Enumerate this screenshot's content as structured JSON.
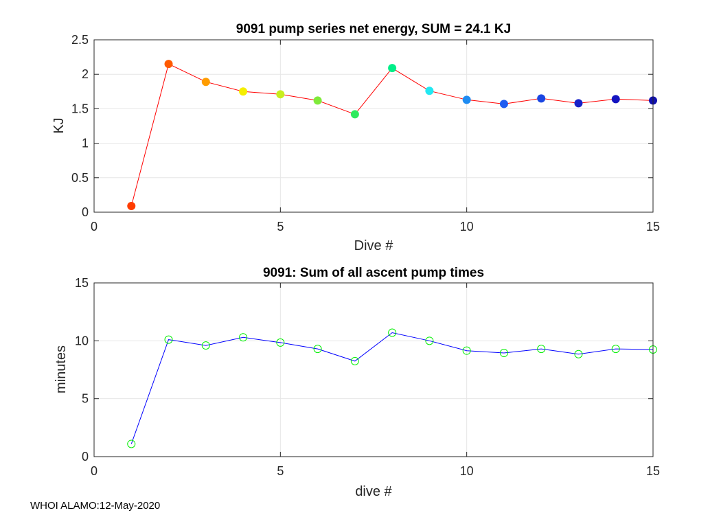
{
  "chart_data": [
    {
      "type": "line",
      "title": "9091 pump series net energy, SUM =  24.1 KJ",
      "xlabel": "Dive #",
      "ylabel": "KJ",
      "xlim": [
        0,
        15
      ],
      "ylim": [
        0,
        2.5
      ],
      "xticks": [
        "0",
        "5",
        "10",
        "15"
      ],
      "yticks": [
        "0",
        "0.5",
        "1",
        "1.5",
        "2",
        "2.5"
      ],
      "grid": true,
      "line_color": "#ff0000",
      "x": [
        1,
        2,
        3,
        4,
        5,
        6,
        7,
        8,
        9,
        10,
        11,
        12,
        13,
        14,
        15
      ],
      "values": [
        0.09,
        2.15,
        1.89,
        1.75,
        1.71,
        1.62,
        1.42,
        2.09,
        1.76,
        1.63,
        1.57,
        1.65,
        1.58,
        1.64,
        1.62
      ],
      "marker_colors": [
        "#ff3c00",
        "#ff5a00",
        "#ff9d00",
        "#f5ee00",
        "#c8ee1e",
        "#7fea3a",
        "#2eea5c",
        "#00ee88",
        "#22e8f2",
        "#1f8cf2",
        "#1f5cf0",
        "#1a46e2",
        "#1620c8",
        "#1414c0",
        "#1010b0"
      ]
    },
    {
      "type": "line",
      "title": "9091: Sum of all ascent pump times",
      "xlabel": "dive #",
      "ylabel": "minutes",
      "xlim": [
        0,
        15
      ],
      "ylim": [
        0,
        15
      ],
      "xticks": [
        "0",
        "5",
        "10",
        "15"
      ],
      "yticks": [
        "0",
        "5",
        "10",
        "15"
      ],
      "grid": true,
      "line_color": "#0000ff",
      "marker_color": "#00ee00",
      "x": [
        1,
        2,
        3,
        4,
        5,
        6,
        7,
        8,
        9,
        10,
        11,
        12,
        13,
        14,
        15
      ],
      "values": [
        1.1,
        10.1,
        9.6,
        10.3,
        9.85,
        9.3,
        8.25,
        10.7,
        10.0,
        9.15,
        8.95,
        9.3,
        8.85,
        9.3,
        9.25
      ]
    }
  ],
  "footer": "WHOI ALAMO:12-May-2020"
}
